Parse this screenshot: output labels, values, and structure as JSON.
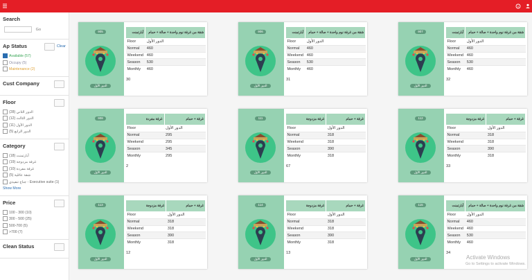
{
  "sidebar": {
    "search": {
      "title": "Search",
      "button": "Go"
    },
    "sections": [
      {
        "title": "Ap Status",
        "clear": "Clear",
        "items": [
          {
            "label": "Available (57)",
            "checked": true,
            "color": "#3aa657"
          },
          {
            "label": "Occupy (5)",
            "checked": false,
            "color": "#8a8aa0"
          },
          {
            "label": "Maintenance (2)",
            "checked": false,
            "color": "#e0a030"
          }
        ]
      },
      {
        "title": "Cust Company",
        "items": []
      },
      {
        "title": "Floor",
        "items": [
          {
            "label": "الدور الثاني (28)"
          },
          {
            "label": "الدور الثالث (12)"
          },
          {
            "label": "الدور الأول (11)"
          },
          {
            "label": "الدور الرابع (5)"
          }
        ]
      },
      {
        "title": "Category",
        "items": [
          {
            "label": "أبارتمنت (18)"
          },
          {
            "label": "غرفة مزدوجة (19)"
          },
          {
            "label": "غرفة مفردة (10)"
          },
          {
            "label": "شقة عائلية (5)"
          },
          {
            "label": "جناح تنفيذي - Executive suite (1)"
          }
        ],
        "more": "Show More"
      },
      {
        "title": "Price",
        "items": [
          {
            "label": "100 - 300 (10)"
          },
          {
            "label": "300 - 500 (25)"
          },
          {
            "label": "500-700 (5)"
          },
          {
            "label": ">700 (7)"
          }
        ]
      },
      {
        "title": "Clean Status",
        "items": []
      }
    ]
  },
  "row_labels": [
    "Floor",
    "Normal",
    "Weekend",
    "Season",
    "Monthly"
  ],
  "cards": [
    {
      "room": "905",
      "category": "أبارتمنت",
      "description": "شقة من غرفة نوم واحدة + صالة + حمام",
      "floor": "الدور الأول",
      "prices": [
        "460",
        "460",
        "530",
        "460"
      ],
      "count": "30"
    },
    {
      "room": "906",
      "category": "أبارتمنت",
      "description": "شقة من غرفة نوم واحدة + صالة + حمام",
      "floor": "الدور الأول",
      "prices": [
        "460",
        "460",
        "530",
        "460"
      ],
      "count": "31"
    },
    {
      "room": "907",
      "category": "أبارتمنت",
      "description": "شقة من غرفة نوم واحدة + صالة + حمام",
      "floor": "الدور الأول",
      "prices": [
        "460",
        "460",
        "530",
        "460"
      ],
      "count": "32"
    },
    {
      "room": "908",
      "category": "غرفة مفردة",
      "description": "غرفة + حمام",
      "floor": "الدور الأول",
      "prices": [
        "295",
        "295",
        "345",
        "295"
      ],
      "count": "2"
    },
    {
      "room": "111",
      "category": "غرفة مزدوجة",
      "description": "غرفة + حمام",
      "floor": "الدور الأول",
      "prices": [
        "318",
        "318",
        "390",
        "318"
      ],
      "count": "67"
    },
    {
      "room": "112",
      "category": "غرفة مزدوجة",
      "description": "غرفة + حمام",
      "floor": "الدور الأول",
      "prices": [
        "318",
        "318",
        "390",
        "318"
      ],
      "count": "33"
    },
    {
      "room": "113",
      "category": "غرفة مزدوجة",
      "description": "غرفة + حمام",
      "floor": "الدور الأول",
      "prices": [
        "318",
        "318",
        "390",
        "318"
      ],
      "count": "12"
    },
    {
      "room": "114",
      "category": "غرفة مزدوجة",
      "description": "غرفة + حمام",
      "floor": "الدور الأول",
      "prices": [
        "318",
        "318",
        "390",
        "318"
      ],
      "count": "13"
    },
    {
      "room": "115",
      "category": "أبارتمنت",
      "description": "شقة من غرفة نوم واحدة + صالة + حمام",
      "floor": "الدور الأول",
      "prices": [
        "460",
        "460",
        "530",
        "460"
      ],
      "count": "34"
    }
  ],
  "watermark": {
    "title": "Activate Windows",
    "subtitle": "Go to Settings to activate Windows."
  }
}
